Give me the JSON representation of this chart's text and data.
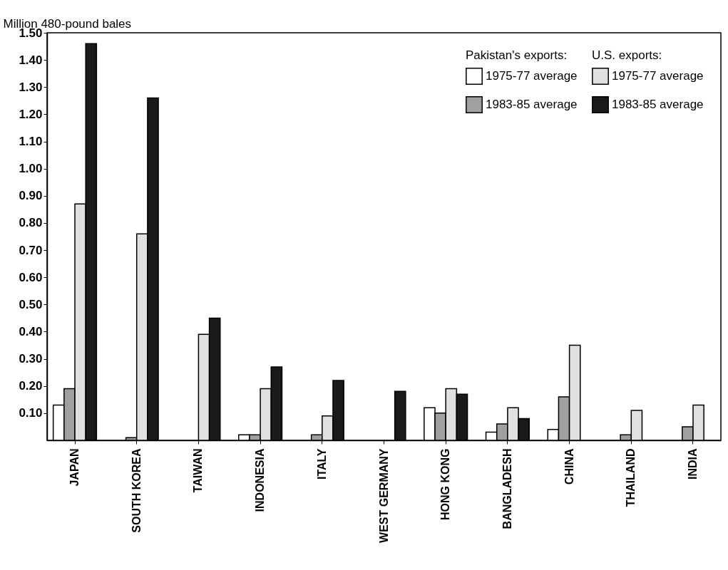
{
  "chart_data": {
    "type": "bar",
    "ylabel": "Million 480-pound bales",
    "categories": [
      "JAPAN",
      "SOUTH KOREA",
      "TAIWAN",
      "INDONESIA",
      "ITALY",
      "WEST GERMANY",
      "HONG KONG",
      "BANGLADESH",
      "CHINA",
      "THAILAND",
      "INDIA"
    ],
    "legend_title": [
      "Pakistan's exports:",
      "U.S. exports:"
    ],
    "series": [
      {
        "name": "1975-77 average",
        "color": "#ffffff",
        "values": [
          0.13,
          null,
          null,
          0.02,
          null,
          null,
          0.12,
          0.03,
          0.04,
          null,
          null
        ]
      },
      {
        "name": "1983-85 average",
        "color": "#a0a0a0",
        "values": [
          0.19,
          0.01,
          null,
          0.02,
          0.02,
          null,
          0.1,
          0.06,
          0.16,
          0.02,
          0.05
        ]
      },
      {
        "name": "1975-77 average",
        "color": "#e0e0e0",
        "values": [
          0.87,
          0.76,
          0.39,
          0.19,
          0.09,
          null,
          0.19,
          0.12,
          0.35,
          0.11,
          0.13
        ]
      },
      {
        "name": "1983-85 average",
        "color": "#1a1a1a",
        "values": [
          1.46,
          1.26,
          0.45,
          0.27,
          0.22,
          0.18,
          0.17,
          0.08,
          null,
          null,
          null
        ]
      }
    ],
    "ylim": [
      0,
      1.5
    ],
    "yticks": [
      {
        "value": 0.1,
        "label": "0.10"
      },
      {
        "value": 0.2,
        "label": "0.20"
      },
      {
        "value": 0.3,
        "label": "0.30"
      },
      {
        "value": 0.4,
        "label": "0.40"
      },
      {
        "value": 0.5,
        "label": "0.50"
      },
      {
        "value": 0.6,
        "label": "0.60"
      },
      {
        "value": 0.7,
        "label": "0.70"
      },
      {
        "value": 0.8,
        "label": "0.80"
      },
      {
        "value": 0.9,
        "label": "0.90"
      },
      {
        "value": 1.0,
        "label": "1.00"
      },
      {
        "value": 1.1,
        "label": "1.10"
      },
      {
        "value": 1.2,
        "label": "1.20"
      },
      {
        "value": 1.3,
        "label": "1.30"
      },
      {
        "value": 1.4,
        "label": "1.40"
      },
      {
        "value": 1.5,
        "label": "1.50"
      }
    ],
    "grid": false,
    "legend": "top right"
  }
}
